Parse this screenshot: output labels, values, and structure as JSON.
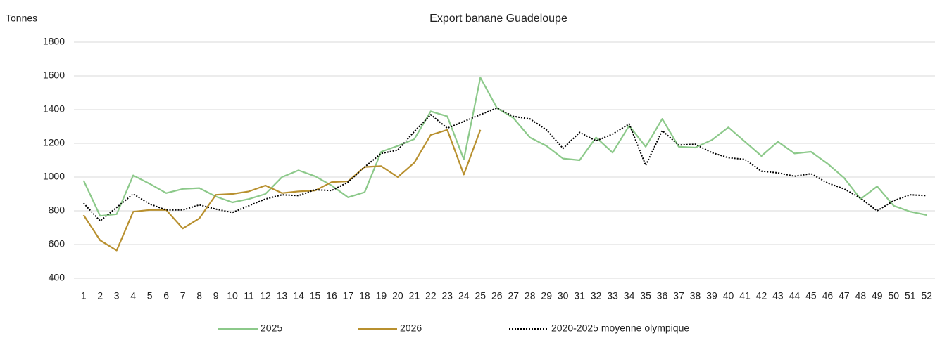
{
  "chart_data": {
    "type": "line",
    "title": "Export banane Guadeloupe",
    "y_label": "Tonnes",
    "categories": [
      "1",
      "2",
      "3",
      "4",
      "5",
      "6",
      "7",
      "8",
      "9",
      "10",
      "11",
      "12",
      "13",
      "14",
      "15",
      "16",
      "17",
      "18",
      "19",
      "20",
      "21",
      "22",
      "23",
      "24",
      "25",
      "26",
      "27",
      "28",
      "29",
      "30",
      "31",
      "32",
      "33",
      "34",
      "35",
      "36",
      "37",
      "38",
      "39",
      "40",
      "41",
      "42",
      "43",
      "44",
      "45",
      "46",
      "47",
      "48",
      "49",
      "50",
      "51",
      "52"
    ],
    "series": [
      {
        "name": "2025",
        "color": "#8cc98a",
        "dash": "solid",
        "values": [
          980,
          770,
          780,
          1010,
          960,
          905,
          930,
          935,
          885,
          850,
          870,
          900,
          1000,
          1040,
          1005,
          950,
          880,
          910,
          1150,
          1185,
          1225,
          1390,
          1360,
          1105,
          1590,
          1410,
          1350,
          1235,
          1185,
          1110,
          1100,
          1235,
          1145,
          1305,
          1180,
          1345,
          1180,
          1175,
          1220,
          1295,
          1210,
          1125,
          1210,
          1140,
          1150,
          1080,
          995,
          870,
          945,
          830,
          795,
          775
        ]
      },
      {
        "name": "2026",
        "color": "#b8902f",
        "dash": "solid",
        "values": [
          775,
          625,
          565,
          795,
          805,
          805,
          695,
          755,
          895,
          900,
          915,
          950,
          905,
          915,
          920,
          970,
          975,
          1060,
          1065,
          1000,
          1085,
          1250,
          1280,
          1015,
          1280,
          null,
          null,
          null,
          null,
          null,
          null,
          null,
          null,
          null,
          null,
          null,
          null,
          null,
          null,
          null,
          null,
          null,
          null,
          null,
          null,
          null,
          null,
          null,
          null,
          null,
          null,
          null
        ]
      },
      {
        "name": "2020-2025 moyenne olympique",
        "color": "#000000",
        "dash": "dotted",
        "values": [
          845,
          740,
          820,
          900,
          840,
          805,
          805,
          835,
          810,
          790,
          830,
          870,
          895,
          890,
          925,
          920,
          970,
          1060,
          1140,
          1160,
          1270,
          1370,
          1290,
          1330,
          1370,
          1410,
          1360,
          1345,
          1280,
          1170,
          1265,
          1215,
          1255,
          1315,
          1070,
          1275,
          1190,
          1195,
          1145,
          1115,
          1105,
          1035,
          1025,
          1005,
          1020,
          965,
          930,
          875,
          800,
          860,
          895,
          890
        ]
      }
    ],
    "ylim": [
      400,
      1800
    ],
    "yticks": [
      400,
      600,
      800,
      1000,
      1200,
      1400,
      1600,
      1800
    ],
    "grid": true,
    "legend": "bottom"
  }
}
